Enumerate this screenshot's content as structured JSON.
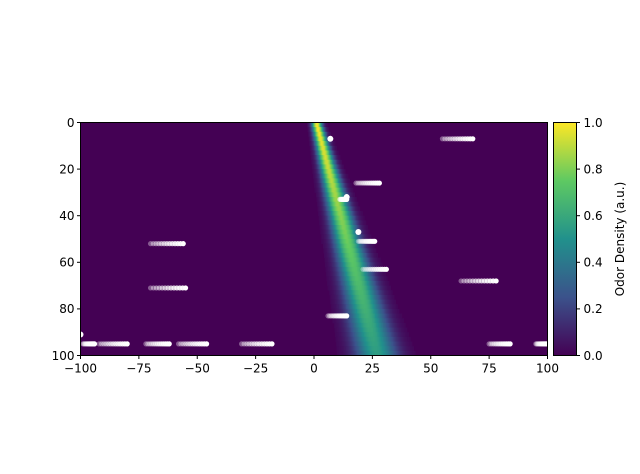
{
  "chart_data": {
    "type": "heatmap",
    "title": "",
    "xlabel": "",
    "ylabel": "",
    "xlim": [
      -100,
      100
    ],
    "ylim": [
      0,
      100
    ],
    "y_inverted": true,
    "x_ticks": [
      {
        "value": -100,
        "label": "−100"
      },
      {
        "value": -75,
        "label": "−75"
      },
      {
        "value": -50,
        "label": "−50"
      },
      {
        "value": -25,
        "label": "−25"
      },
      {
        "value": 0,
        "label": "0"
      },
      {
        "value": 25,
        "label": "25"
      },
      {
        "value": 50,
        "label": "50"
      },
      {
        "value": 75,
        "label": "75"
      },
      {
        "value": 100,
        "label": "100"
      }
    ],
    "y_ticks": [
      {
        "value": 0,
        "label": "0"
      },
      {
        "value": 20,
        "label": "20"
      },
      {
        "value": 40,
        "label": "40"
      },
      {
        "value": 60,
        "label": "60"
      },
      {
        "value": 80,
        "label": "80"
      },
      {
        "value": 100,
        "label": "100"
      }
    ],
    "colormap": "viridis",
    "colormap_stops": [
      "#440154",
      "#3b528b",
      "#21918c",
      "#5ec962",
      "#fde725"
    ],
    "background_color": "#440154",
    "plume": {
      "center_top": 1,
      "center_bottom": 27,
      "width_top": 1.5,
      "width_bottom": 6.5,
      "peak_top": 1.0,
      "peak_bottom": 0.55
    },
    "colorbar": {
      "label": "Odor Density (a.u.)",
      "range": [
        0.0,
        1.0
      ],
      "ticks": [
        {
          "value": 0.0,
          "label": "0.0"
        },
        {
          "value": 0.2,
          "label": "0.2"
        },
        {
          "value": 0.4,
          "label": "0.4"
        },
        {
          "value": 0.6,
          "label": "0.6"
        },
        {
          "value": 0.8,
          "label": "0.8"
        },
        {
          "value": 1.0,
          "label": "1.0"
        }
      ]
    },
    "trail_color": "#ffffff",
    "trails": [
      {
        "x0": 55,
        "x1": 68,
        "y": 7
      },
      {
        "x0": 18,
        "x1": 28,
        "y": 26
      },
      {
        "x0": 11,
        "x1": 14,
        "y": 33
      },
      {
        "x0": 19,
        "x1": 26,
        "y": 51
      },
      {
        "x0": 21,
        "x1": 31,
        "y": 63
      },
      {
        "x0": -70,
        "x1": -56,
        "y": 52
      },
      {
        "x0": -70,
        "x1": -55,
        "y": 71
      },
      {
        "x0": 63,
        "x1": 78,
        "y": 68
      },
      {
        "x0": 6,
        "x1": 14,
        "y": 83
      },
      {
        "x0": -99,
        "x1": -94,
        "y": 95
      },
      {
        "x0": -92,
        "x1": -80,
        "y": 95
      },
      {
        "x0": -72,
        "x1": -62,
        "y": 95
      },
      {
        "x0": -58,
        "x1": -46,
        "y": 95
      },
      {
        "x0": -31,
        "x1": -18,
        "y": 95
      },
      {
        "x0": 75,
        "x1": 84,
        "y": 95
      },
      {
        "x0": 95,
        "x1": 100,
        "y": 95
      }
    ],
    "agents": [
      {
        "x": 7,
        "y": 7
      },
      {
        "x": 14,
        "y": 32
      },
      {
        "x": 19,
        "y": 47
      },
      {
        "x": -100,
        "y": 91
      }
    ]
  }
}
